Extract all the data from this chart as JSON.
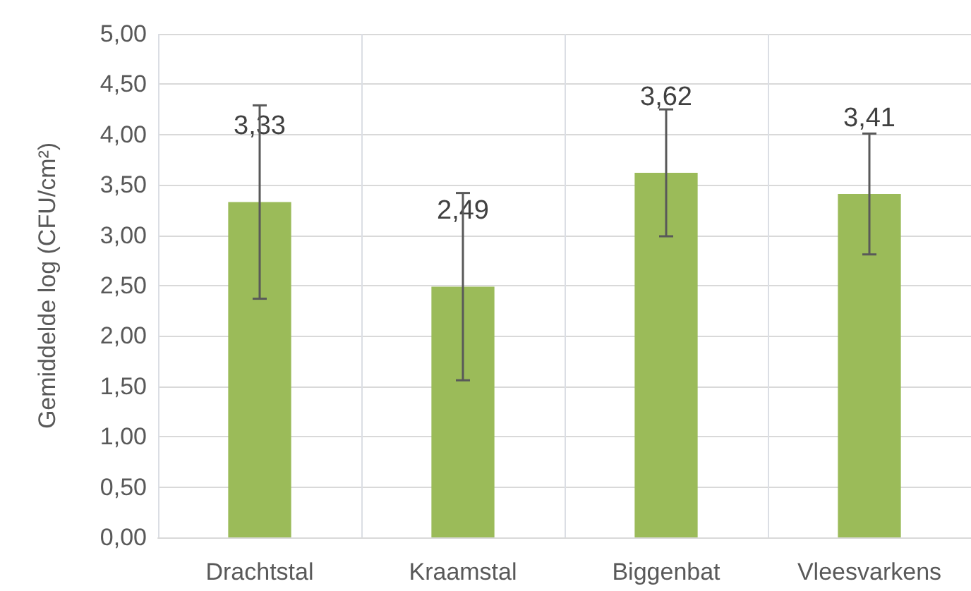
{
  "chart_data": {
    "type": "bar",
    "ylabel": "Gemiddelde log (CFU/cm²)",
    "categories": [
      "Drachtstal",
      "Kraamstal",
      "Biggenbat",
      "Vleesvarkens"
    ],
    "values": [
      3.33,
      2.49,
      3.62,
      3.41
    ],
    "value_labels": [
      "3,33",
      "2,49",
      "3,62",
      "3,41"
    ],
    "errors": [
      0.96,
      0.93,
      0.63,
      0.6
    ],
    "color": "#9bbb59",
    "ylim": [
      0,
      5
    ],
    "yticks": [
      {
        "value": 0,
        "label": "0,00"
      },
      {
        "value": 0.5,
        "label": "0,50"
      },
      {
        "value": 1,
        "label": "1,00"
      },
      {
        "value": 1.5,
        "label": "1,50"
      },
      {
        "value": 2,
        "label": "2,00"
      },
      {
        "value": 2.5,
        "label": "2,50"
      },
      {
        "value": 3,
        "label": "3,00"
      },
      {
        "value": 3.5,
        "label": "3,50"
      },
      {
        "value": 4,
        "label": "4,00"
      },
      {
        "value": 4.5,
        "label": "4,50"
      },
      {
        "value": 5,
        "label": "5,00"
      }
    ],
    "grid": true
  }
}
